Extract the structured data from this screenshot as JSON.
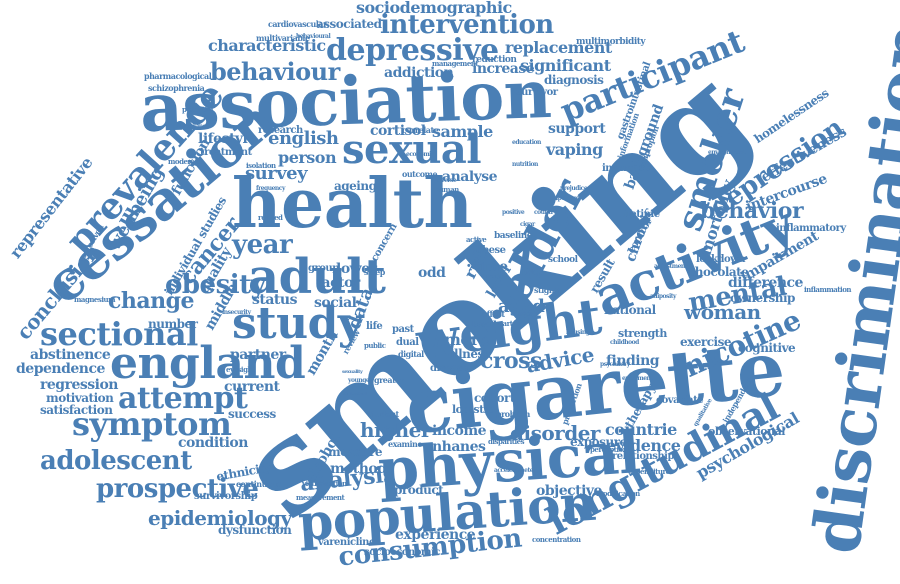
{
  "accent_color": "#4a7fb5",
  "words": {
    "smoking": "smoking",
    "cigarette": "cigarette",
    "discrimination": "discrimination",
    "association": "association",
    "health": "health",
    "physical": "physical",
    "population": "population",
    "cessation": "cessation",
    "weight": "weight",
    "activity": "activity",
    "adult": "adult",
    "england": "england",
    "older": "older",
    "study": "study",
    "sexual": "sexual",
    "longitudinal": "longitudinal",
    "prevalence": "prevalence",
    "depressive": "depressive",
    "smoker": "smoker",
    "participant": "participant",
    "sectional": "sectional",
    "symptom": "symptom",
    "attempt": "attempt",
    "adolescent": "adolescent",
    "consumption": "consumption",
    "prospective": "prospective",
    "intervention": "intervention",
    "behaviour": "behaviour",
    "obesity": "obesity",
    "year": "year",
    "mental": "mental",
    "nicotine": "nicotine",
    "depression": "depression",
    "behavior": "behavior",
    "woman": "woman",
    "survey": "survey",
    "change": "change",
    "analysis": "analysis",
    "epidemiology": "epidemiology",
    "cross": "cross",
    "advice": "advice",
    "cancer": "cancer",
    "conclusion": "conclusion",
    "sociodemographic": "sociodemographic",
    "characteristic": "characteristic",
    "replacement": "replacement",
    "representative": "representative",
    "wellbeing": "wellbeing",
    "dependence": "dependence",
    "abstinence": "abstinence",
    "regression": "regression",
    "motivation": "motivation",
    "satisfaction": "satisfaction",
    "higher": "higher",
    "disorder": "disorder",
    "countrie": "countrie",
    "evidence": "evidence",
    "psychological": "psychological",
    "experience": "experience",
    "mortality": "mortality",
    "effectiveness": "effectiveness",
    "intercourse": "intercourse",
    "homelessness": "homelessness",
    "significant": "significant",
    "increase": "increase",
    "addiction": "addiction",
    "diagnosis": "diagnosis",
    "english": "english",
    "person": "person",
    "cortisol": "cortisol",
    "sample": "sample",
    "vaping": "vaping",
    "support": "support",
    "background": "background",
    "chronic": "chronic",
    "function": "function",
    "lifestyle": "lifestyle",
    "individual_studies": "individual studies",
    "quality": "quality",
    "middle": "middle",
    "status": "status",
    "social": "social",
    "data": "data",
    "aged": "aged",
    "factor": "factor",
    "lower": "lower",
    "odd": "odd",
    "risk": "risk",
    "time": "time",
    "level": "level",
    "more": "more",
    "illness": "illness",
    "month": "month",
    "partner": "partner",
    "current": "current",
    "success": "success",
    "alcohol": "alcohol",
    "measure": "measure",
    "method": "method",
    "income": "income",
    "nhanes": "nhanes",
    "objective": "objective",
    "product": "product",
    "condition": "condition",
    "ethnicity": "ethnicity",
    "dysfunction": "dysfunction",
    "varenicline": "varenicline",
    "socioeconomic": "socioeconomic",
    "survivorship": "survivorship",
    "continuous": "continuous",
    "cohort": "cohort",
    "logistic": "logistic",
    "finding": "finding",
    "national": "national",
    "exercise": "exercise",
    "cognitive": "cognitive",
    "ownership": "ownership",
    "difference": "difference",
    "impairment": "impairment",
    "chocolate": "chocolate",
    "strength": "strength",
    "observational": "observational",
    "covariate": "covariate",
    "therapy": "therapy",
    "exposure": "exposure",
    "relationship": "relationship",
    "number": "number",
    "ageing": "ageing",
    "analyse": "analyse",
    "research": "research",
    "treatment": "treatment",
    "associated": "associated",
    "inflammatory": "inflammatory",
    "lockdown": "lockdown",
    "influence": "influence",
    "lifetime": "lifetime",
    "control": "control",
    "result": "result",
    "school": "school",
    "management": "management",
    "reduction": "reduction",
    "survivor": "survivor",
    "multimorbidity": "multimorbidity",
    "cardiovascular": "cardiovascular",
    "multivariable": "multivariable",
    "pharmacological": "pharmacological",
    "schizophrenia": "schizophrenia",
    "gastrointestinal": "gastrointestinal",
    "information": "information",
    "bupropion": "bupropion",
    "correlate": "correlate",
    "outcome": "outcome",
    "sleep": "sleep",
    "group": "group",
    "examine": "examine",
    "disease": "disease",
    "student": "student",
    "greater": "greater",
    "problem": "problem",
    "dual": "dual",
    "past": "past",
    "digital": "digital",
    "public": "public",
    "eyesight": "eyesight",
    "potential": "potential",
    "caregiving": "caregiving",
    "moderate": "moderate",
    "isolation": "isolation",
    "perceived": "perceived",
    "magnesium": "magnesium",
    "concentration": "concentration",
    "expenditure": "expenditure",
    "modification": "modification",
    "perception": "perception",
    "inflammation": "inflammation",
    "disparities": "disparities",
    "victimisation": "victimisation",
    "measurement": "measurement",
    "environment": "environment",
    "proportion": "proportion",
    "independent": "independent",
    "adiposity": "adiposity",
    "adjustment": "adjustment",
    "frequency": "frequency",
    "related": "related",
    "behavioural": "behavioural",
    "obese": "obese",
    "based": "based",
    "index": "index",
    "stigma": "stigma",
    "review": "review",
    "life": "life",
    "concern": "concern",
    "human": "human",
    "education": "education",
    "nutrition": "nutrition",
    "adverse": "adverse",
    "active": "active",
    "baseline": "baseline",
    "positive": "positive",
    "effect": "effect",
    "heart": "heart",
    "impact": "impact",
    "insecurity": "insecurity",
    "younger": "younger",
    "sexuality": "sexuality",
    "contextual": "contextual",
    "enjoyment": "enjoyment",
    "accelerometer": "accelerometer",
    "country": "country",
    "model": "model",
    "cigar": "cigar",
    "childhood": "childhood",
    "qualitative": "qualitative",
    "prejudice": "prejudice",
    "important": "important",
    "psychiatry": "psychiatry",
    "housing": "housing",
    "economic": "economic"
  }
}
